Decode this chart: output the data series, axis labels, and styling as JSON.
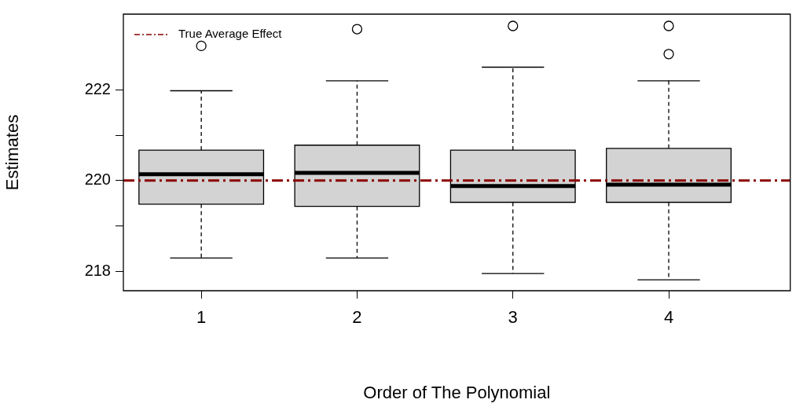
{
  "chart_data": {
    "type": "box",
    "xlabel": "Order of The Polynomial",
    "ylabel": "Estimates",
    "categories": [
      "1",
      "2",
      "3",
      "4"
    ],
    "color": "#d3d3d3",
    "boxes": [
      {
        "low": 218.29,
        "q1": 219.48,
        "median": 220.14,
        "q3": 220.67,
        "high": 221.98,
        "outliers": [
          222.97
        ]
      },
      {
        "low": 218.29,
        "q1": 219.43,
        "median": 220.17,
        "q3": 220.78,
        "high": 222.2,
        "outliers": [
          223.34
        ]
      },
      {
        "low": 217.95,
        "q1": 219.52,
        "median": 219.88,
        "q3": 220.67,
        "high": 222.5,
        "outliers": [
          223.41
        ]
      },
      {
        "low": 217.81,
        "q1": 219.52,
        "median": 219.91,
        "q3": 220.71,
        "high": 222.2,
        "outliers": [
          223.41,
          222.79
        ]
      }
    ],
    "ylim": [
      217.57,
      223.67
    ],
    "yticks": [
      218,
      {
        "value": 219,
        "label": null
      },
      220,
      {
        "value": 221,
        "label": null
      },
      222
    ],
    "ref_lines": [
      {
        "axis": "y",
        "value": 220,
        "label": "True Average Effect",
        "color": "#8b0000",
        "line_style": "dashed"
      }
    ],
    "legend": "top left",
    "grid": false
  }
}
